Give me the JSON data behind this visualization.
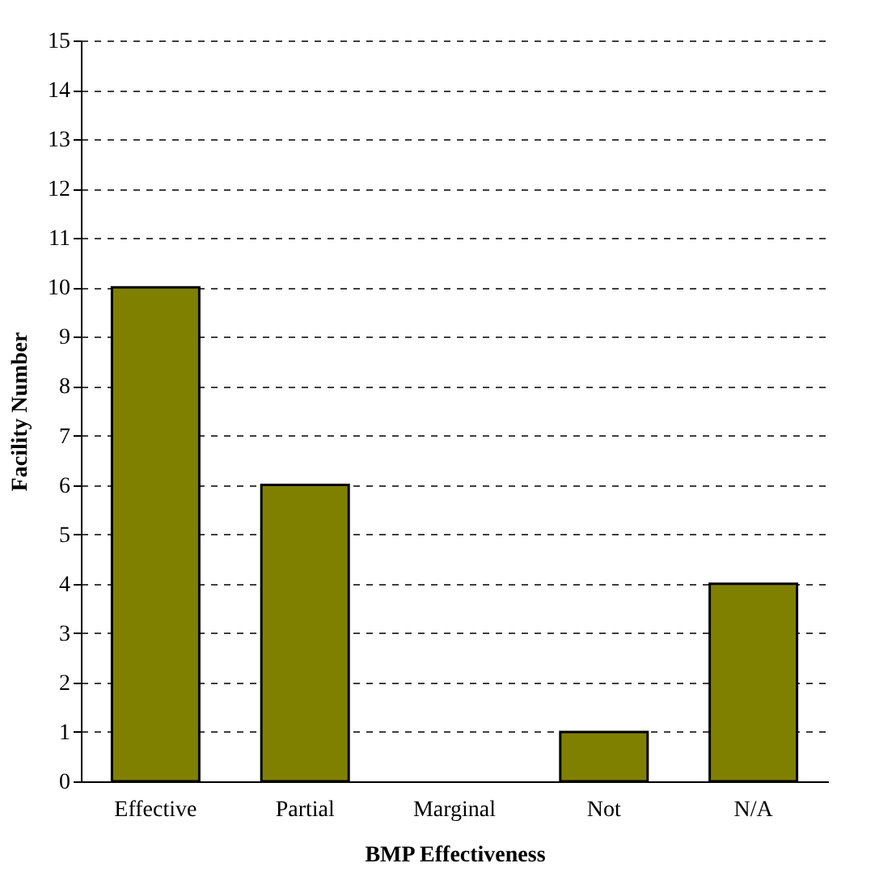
{
  "chart_data": {
    "type": "bar",
    "xlabel": "BMP Effectiveness",
    "ylabel": "Facility Number",
    "categories": [
      "Effective",
      "Partial",
      "Marginal",
      "Not",
      "N/A"
    ],
    "values": [
      10,
      6,
      0,
      1,
      4
    ],
    "color": "#808000",
    "ylim": [
      0,
      15
    ],
    "yticks": [
      0,
      1,
      2,
      3,
      4,
      5,
      6,
      7,
      8,
      9,
      10,
      11,
      12,
      13,
      14,
      15
    ],
    "grid": "y"
  }
}
